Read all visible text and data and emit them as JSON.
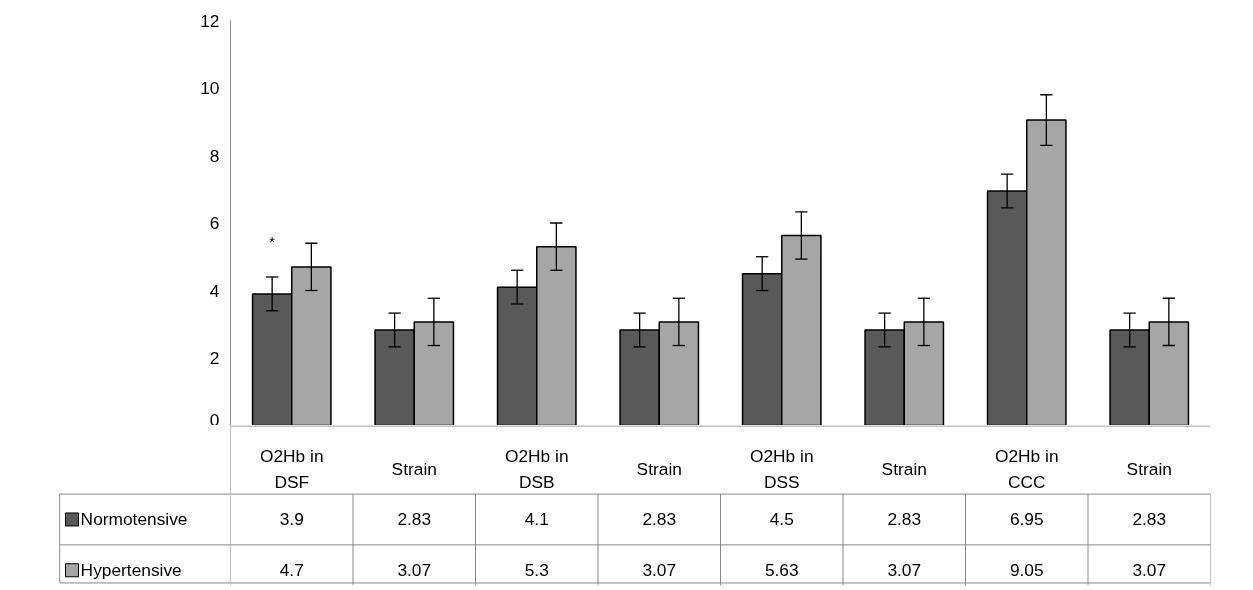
{
  "chart_data": {
    "type": "bar",
    "categories": [
      "O2Hb in DSF",
      "Strain",
      "O2Hb in DSB",
      "Strain",
      "O2Hb in DSS",
      "Strain",
      "O2Hb in CCC",
      "Strain"
    ],
    "series": [
      {
        "name": "Normotensive",
        "color": "#595959",
        "values": [
          3.9,
          2.83,
          4.1,
          2.83,
          4.5,
          2.83,
          6.95,
          2.83
        ],
        "errors": [
          0.5,
          0.5,
          0.5,
          0.5,
          0.5,
          0.5,
          0.5,
          0.5
        ]
      },
      {
        "name": "Hypertensive",
        "color": "#a6a6a6",
        "values": [
          4.7,
          3.07,
          5.3,
          3.07,
          5.63,
          3.07,
          9.05,
          3.07
        ],
        "errors": [
          0.7,
          0.7,
          0.7,
          0.7,
          0.7,
          0.7,
          0.75,
          0.7
        ]
      }
    ],
    "ylim": [
      0,
      12
    ],
    "yticks": [
      0,
      2,
      4,
      6,
      8,
      10,
      12
    ],
    "grid": false,
    "legend": "bottom",
    "data_labels": true,
    "annotations": [
      "*"
    ]
  }
}
